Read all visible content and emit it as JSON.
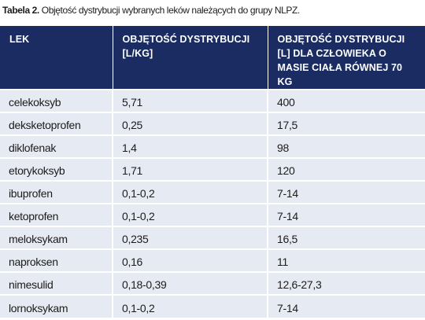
{
  "caption": {
    "label": "Tabela 2.",
    "text": " Objętość dystrybucji wybranych leków należących do grupy NLPZ."
  },
  "table": {
    "headers": [
      "LEK",
      "OBJĘTOŚĆ DYSTRYBUCJI [L/KG]",
      "OBJĘTOŚĆ DYSTRYBUCJI [L] DLA CZŁOWIEKA O MASIE CIAŁA RÓWNEJ 70 KG"
    ],
    "rows": [
      [
        "celekoksyb",
        "5,71",
        "400"
      ],
      [
        "deksketoprofen",
        "0,25",
        "17,5"
      ],
      [
        "diklofenak",
        "1,4",
        "98"
      ],
      [
        "etorykoksyb",
        "1,71",
        "120"
      ],
      [
        "ibuprofen",
        "0,1-0,2",
        "7-14"
      ],
      [
        "ketoprofen",
        "0,1-0,2",
        "7-14"
      ],
      [
        "meloksykam",
        "0,235",
        "16,5"
      ],
      [
        "naproksen",
        "0,16",
        "11"
      ],
      [
        "nimesulid",
        "0,18-0,39",
        "12,6-27,3"
      ],
      [
        "lornoksykam",
        "0,1-0,2",
        "7-14"
      ]
    ]
  }
}
